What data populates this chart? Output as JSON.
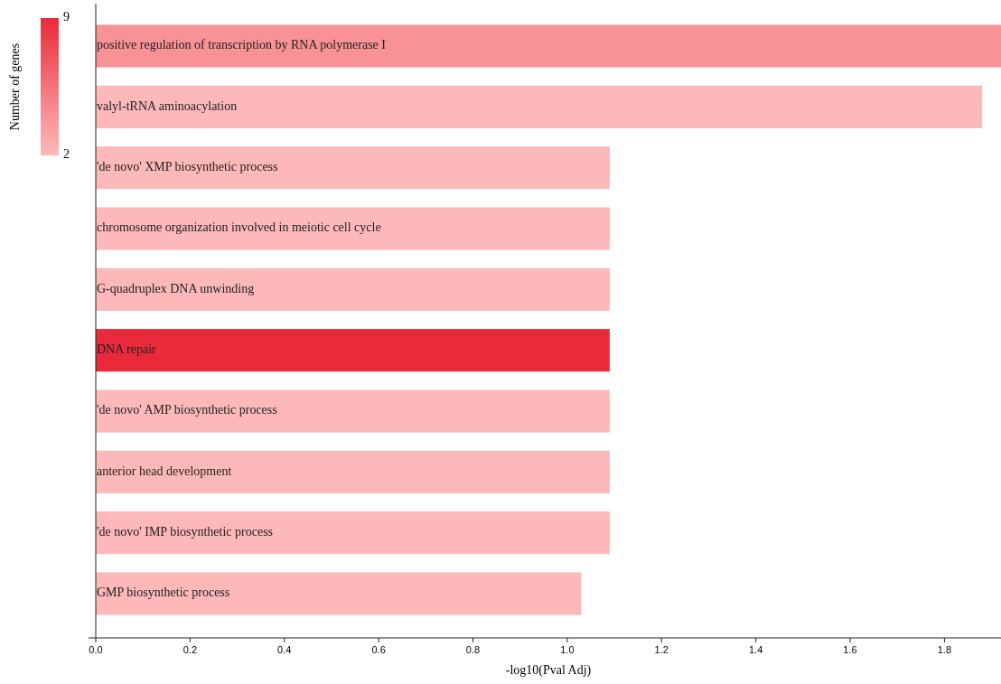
{
  "chart_data": {
    "type": "bar",
    "orientation": "horizontal",
    "xlabel": "-log10(Pval Adj)",
    "clabel": "Number of genes",
    "categories": [
      "positive regulation of transcription by RNA polymerase I",
      "valyl-tRNA aminoacylation",
      "'de novo' XMP biosynthetic process",
      "chromosome organization involved in meiotic cell cycle",
      "G-quadruplex DNA unwinding",
      "DNA repair",
      "'de novo' AMP biosynthetic process",
      "anterior head development",
      "'de novo' IMP biosynthetic process",
      "GMP biosynthetic process"
    ],
    "values": [
      1.92,
      1.88,
      1.09,
      1.09,
      1.09,
      1.09,
      1.09,
      1.09,
      1.09,
      1.03
    ],
    "cvalues": [
      4,
      2,
      2,
      2,
      2,
      9,
      2,
      2,
      2,
      2
    ],
    "colors": [
      "#f99297",
      "#fdb8b9",
      "#fdb8b9",
      "#fdb8b9",
      "#fdb8b9",
      "#ea2a3b",
      "#fdb8b9",
      "#fdb8b9",
      "#fdb8b9",
      "#fdb8b9"
    ],
    "clim": [
      2,
      9
    ],
    "cticks": [
      2,
      9
    ],
    "xlim": [
      0,
      1.92
    ],
    "xticks": [
      {
        "value": 0,
        "label": "0.0"
      },
      0.2,
      0.4,
      0.6,
      0.8,
      {
        "value": 1,
        "label": "1.0"
      },
      1.2,
      1.4,
      1.6,
      1.8
    ],
    "tick_labels": "x",
    "grid": false
  }
}
